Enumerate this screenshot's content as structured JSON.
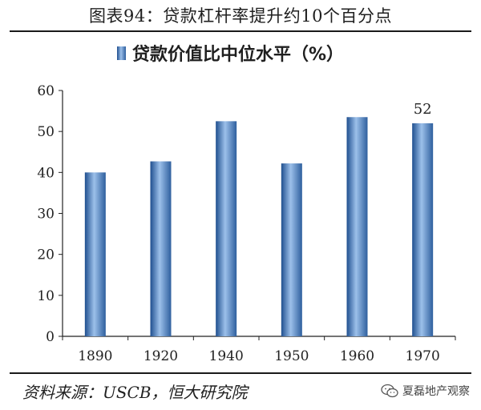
{
  "header": {
    "title": "图表94：贷款杠杆率提升约10个百分点"
  },
  "footer": {
    "source": "资料来源：USCB，恒大研究院"
  },
  "watermark": {
    "label": "夏磊地产观察",
    "icon": "wechat-icon"
  },
  "chart_data": {
    "type": "bar",
    "title": "",
    "categories": [
      "1890",
      "1920",
      "1940",
      "1950",
      "1960",
      "1970"
    ],
    "series": [
      {
        "name": "贷款价值比中位水平（%）",
        "values": [
          40,
          42.7,
          52.5,
          42.2,
          53.5,
          52
        ]
      }
    ],
    "data_labels": [
      {
        "category": "1970",
        "text": "52"
      }
    ],
    "xlabel": "",
    "ylabel": "",
    "ylim": [
      0,
      60
    ],
    "yticks": [
      0,
      10,
      20,
      30,
      40,
      50,
      60
    ],
    "grid": false,
    "legend": "top-center",
    "colors": {
      "bar_dark": "#1f4f8f",
      "bar_mid": "#4f86c6",
      "bar_light": "#9cc0ea",
      "axis": "#222222"
    }
  }
}
